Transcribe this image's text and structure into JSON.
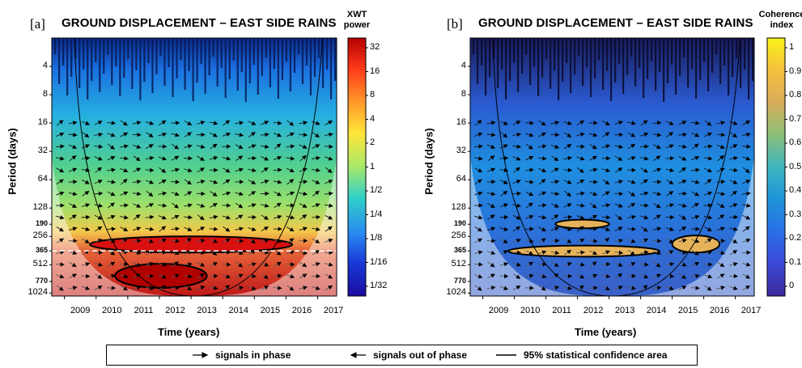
{
  "chart_data": [
    {
      "type": "heatmap",
      "panel_tag": "[a]",
      "title": "GROUND DISPLACEMENT – EAST SIDE RAINS",
      "xlabel": "Time (years)",
      "ylabel": "Period (days)",
      "x_ticks": [
        "2009",
        "2010",
        "2011",
        "2012",
        "2013",
        "2014",
        "2015",
        "2016",
        "2017"
      ],
      "y_ticks": [
        "4",
        "8",
        "16",
        "32",
        "64",
        "128",
        "190",
        "256",
        "365",
        "512",
        "770",
        "1024"
      ],
      "y_scale": "log2",
      "colorbar": {
        "title_lines": [
          "XWT",
          "power"
        ],
        "ticks": [
          "32",
          "16",
          "8",
          "4",
          "2",
          "1",
          "1/2",
          "1/4",
          "1/8",
          "1/16",
          "1/32"
        ],
        "colors": [
          "#b40000",
          "#ff3a1a",
          "#ff9a2a",
          "#ffe63a",
          "#a6e86a",
          "#2fd0c8",
          "#2a8ef0",
          "#1a3ad8",
          "#1a0aa0"
        ]
      },
      "dashed_line_period": 365,
      "features": [
        {
          "label": "high power band",
          "period_from": 256,
          "period_to": 380,
          "x_from": 2009.8,
          "x_to": 2016.2
        },
        {
          "label": "high power band",
          "period_from": 500,
          "period_to": 900,
          "x_from": 2010.6,
          "x_to": 2013.5
        }
      ]
    },
    {
      "type": "heatmap",
      "panel_tag": "[b]",
      "title": "GROUND DISPLACEMENT – EAST SIDE RAINS",
      "xlabel": "Time (years)",
      "ylabel": "Period (days)",
      "x_ticks": [
        "2009",
        "2010",
        "2011",
        "2012",
        "2013",
        "2014",
        "2015",
        "2016",
        "2017"
      ],
      "y_ticks": [
        "4",
        "8",
        "16",
        "32",
        "64",
        "128",
        "190",
        "256",
        "365",
        "512",
        "770",
        "1024"
      ],
      "y_scale": "log2",
      "colorbar": {
        "title_lines": [
          "Coherence",
          "index"
        ],
        "ticks": [
          "1",
          "0.9",
          "0.8",
          "0.7",
          "0.6",
          "0.5",
          "0.4",
          "0.3",
          "0.2",
          "0.1",
          "0"
        ],
        "colors": [
          "#f8f31a",
          "#f6c13c",
          "#d8ad5a",
          "#8dbf76",
          "#3fb6c0",
          "#1e95d8",
          "#2a6fe8",
          "#3b4ad8",
          "#3b2a9a"
        ]
      },
      "features": [
        {
          "label": "coherent region",
          "period_from": 170,
          "period_to": 210,
          "x_from": 2011.3,
          "x_to": 2013.0
        },
        {
          "label": "coherent region",
          "period_from": 320,
          "period_to": 420,
          "x_from": 2009.8,
          "x_to": 2014.6
        },
        {
          "label": "coherent region",
          "period_from": 250,
          "period_to": 380,
          "x_from": 2015.0,
          "x_to": 2016.5
        }
      ]
    }
  ],
  "legend": {
    "in_phase": "signals in phase",
    "out_phase": "signals out of phase",
    "confidence": "95% statistical confidence area"
  }
}
